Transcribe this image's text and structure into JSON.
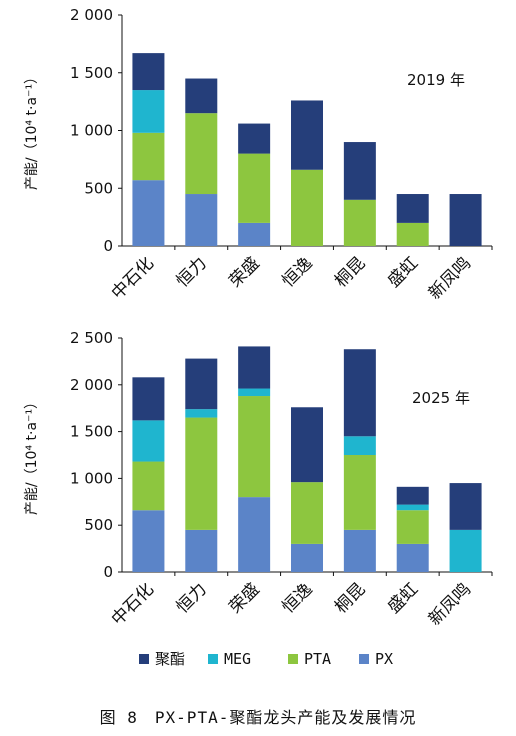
{
  "chart_data": [
    {
      "type": "bar",
      "stacked": true,
      "panel_label": "2019 年",
      "ylabel": "产能/（10⁴ t·a⁻¹）",
      "ylim": [
        0,
        2000
      ],
      "yticks": [
        0,
        500,
        1000,
        1500,
        2000
      ],
      "ytick_labels": [
        "0",
        "500",
        "1 000",
        "1 500",
        "2 000"
      ],
      "categories": [
        "中石化",
        "恒力",
        "荣盛",
        "恒逸",
        "桐昆",
        "盛虹",
        "新凤鸣"
      ],
      "series": [
        {
          "name": "PX",
          "color": "#5b84c8",
          "values": [
            570,
            450,
            200,
            0,
            0,
            0,
            0
          ]
        },
        {
          "name": "PTA",
          "color": "#8dc63f",
          "values": [
            410,
            700,
            600,
            660,
            400,
            200,
            0
          ]
        },
        {
          "name": "MEG",
          "color": "#1fb5cf",
          "values": [
            370,
            0,
            0,
            0,
            0,
            0,
            0
          ]
        },
        {
          "name": "聚酯",
          "color": "#253e7a",
          "values": [
            320,
            300,
            260,
            600,
            500,
            250,
            450
          ]
        }
      ]
    },
    {
      "type": "bar",
      "stacked": true,
      "panel_label": "2025 年",
      "ylabel": "产能/（10⁴ t·a⁻¹）",
      "ylim": [
        0,
        2500
      ],
      "yticks": [
        0,
        500,
        1000,
        1500,
        2000,
        2500
      ],
      "ytick_labels": [
        "0",
        "500",
        "1 000",
        "1 500",
        "2 000",
        "2 500"
      ],
      "categories": [
        "中石化",
        "恒力",
        "荣盛",
        "恒逸",
        "桐昆",
        "盛虹",
        "新凤鸣"
      ],
      "series": [
        {
          "name": "PX",
          "color": "#5b84c8",
          "values": [
            660,
            450,
            800,
            300,
            450,
            300,
            0
          ]
        },
        {
          "name": "PTA",
          "color": "#8dc63f",
          "values": [
            520,
            1200,
            1080,
            660,
            800,
            360,
            0
          ]
        },
        {
          "name": "MEG",
          "color": "#1fb5cf",
          "values": [
            440,
            90,
            80,
            0,
            200,
            60,
            450
          ]
        },
        {
          "name": "聚酯",
          "color": "#253e7a",
          "values": [
            460,
            540,
            450,
            800,
            930,
            190,
            500
          ]
        }
      ]
    }
  ],
  "legend": [
    {
      "label": "聚酯",
      "color": "#253e7a"
    },
    {
      "label": "MEG",
      "color": "#1fb5cf"
    },
    {
      "label": "PTA",
      "color": "#8dc63f"
    },
    {
      "label": "PX",
      "color": "#5b84c8"
    }
  ],
  "caption": "图 8　PX-PTA-聚酯龙头产能及发展情况"
}
